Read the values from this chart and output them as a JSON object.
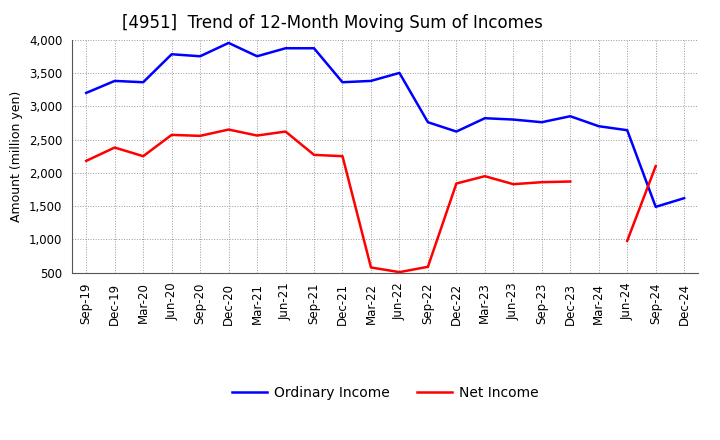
{
  "title": "[4951]  Trend of 12-Month Moving Sum of Incomes",
  "ylabel": "Amount (million yen)",
  "xlim_labels": [
    "Sep-19",
    "Dec-19",
    "Mar-20",
    "Jun-20",
    "Sep-20",
    "Dec-20",
    "Mar-21",
    "Jun-21",
    "Sep-21",
    "Dec-21",
    "Mar-22",
    "Jun-22",
    "Sep-22",
    "Dec-22",
    "Mar-23",
    "Jun-23",
    "Sep-23",
    "Dec-23",
    "Mar-24",
    "Jun-24",
    "Sep-24",
    "Dec-24"
  ],
  "ordinary_income": [
    3200,
    3380,
    3360,
    3780,
    3750,
    3950,
    3750,
    3870,
    3870,
    3360,
    3380,
    3500,
    2760,
    2620,
    2820,
    2800,
    2760,
    2850,
    2700,
    2640,
    1490,
    1620
  ],
  "net_income": [
    2180,
    2380,
    2250,
    2570,
    2555,
    2650,
    2560,
    2620,
    2270,
    2250,
    580,
    510,
    590,
    1840,
    1950,
    1830,
    1860,
    1870,
    null,
    980,
    2100,
    null
  ],
  "ordinary_color": "#0000ff",
  "net_color": "#ff0000",
  "ylim": [
    500,
    4000
  ],
  "yticks": [
    500,
    1000,
    1500,
    2000,
    2500,
    3000,
    3500,
    4000
  ],
  "background_color": "#ffffff",
  "grid_color": "#999999",
  "legend_labels": [
    "Ordinary Income",
    "Net Income"
  ],
  "title_fontsize": 12,
  "axis_fontsize": 9,
  "tick_fontsize": 8.5
}
